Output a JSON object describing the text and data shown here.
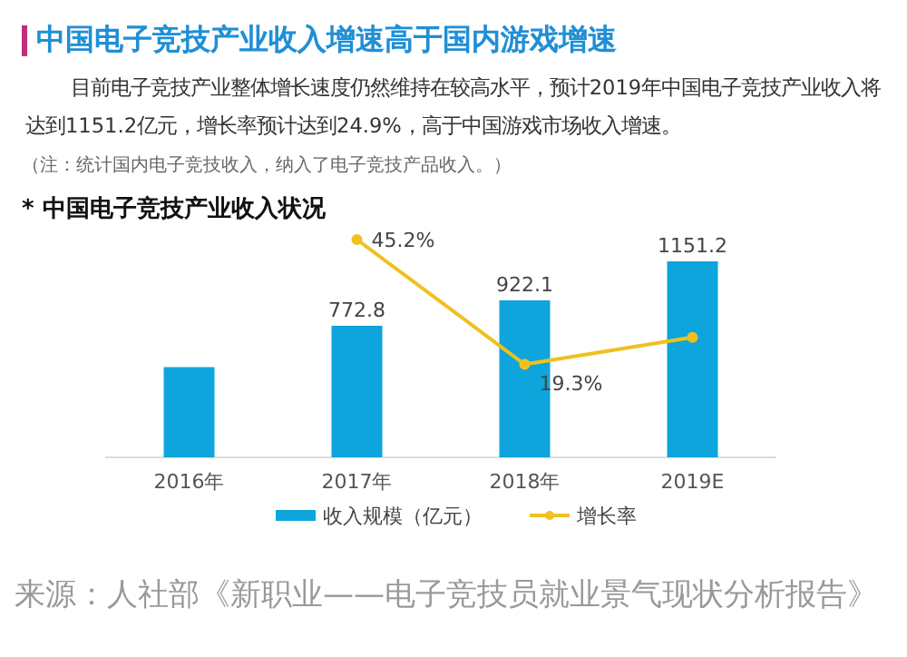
{
  "chart_data": {
    "type": "bar",
    "title": "中国电子竞技产业收入增速高于国内游戏增速",
    "subtitle": "目前电子竞技产业整体增长速度仍然维持在较高水平，预计2019年中国电子竞技产业收入将达到1151.2亿元，增长率预计达到24.9%，高于中国游戏市场收入增速。",
    "annotations": [
      "（注：统计国内电子竞技收入，纳入了电子竞技产品收入。）",
      "* 中国电子竞技产业收入状况",
      "来源：人社部《新职业——电子竞技员就业景气现状分析报告》"
    ],
    "categories": [
      "2016年",
      "2017年",
      "2018年",
      "2019E"
    ],
    "series": [
      {
        "name": "收入规模（亿元）",
        "color": "#0ea5dc",
        "values": [
          530,
          772.8,
          922.1,
          1151.2
        ],
        "value_labels": [
          null,
          "772.8",
          "922.1",
          "1151.2"
        ]
      },
      {
        "name": "增长率",
        "type": "line",
        "axis": "y2",
        "color": "#f0c020",
        "values": [
          null,
          45.2,
          19.3,
          24.9
        ],
        "value_labels": [
          null,
          "45.2%",
          "19.3%",
          null
        ]
      }
    ],
    "marker": "circle",
    "legend": "bottom"
  }
}
